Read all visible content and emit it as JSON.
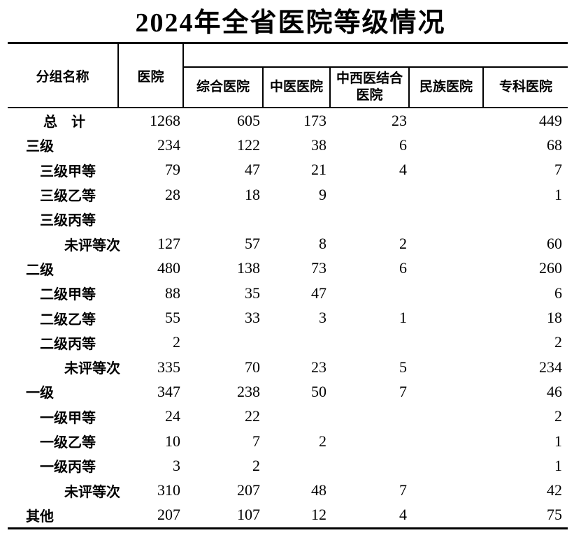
{
  "title": "2024年全省医院等级情况",
  "colors": {
    "background": "#ffffff",
    "text": "#000000",
    "rule": "#000000"
  },
  "table": {
    "header": {
      "group_column": "分组名称",
      "total_column": "医院",
      "sub_columns": [
        "综合医院",
        "中医医院",
        "中西医结合医院",
        "民族医院",
        "专科医院"
      ]
    },
    "rows": [
      {
        "label": "总　计",
        "indent": "total",
        "values": [
          "1268",
          "605",
          "173",
          "23",
          "",
          "449"
        ]
      },
      {
        "label": "三级",
        "indent": "group",
        "values": [
          "234",
          "122",
          "38",
          "6",
          "",
          "68"
        ]
      },
      {
        "label": "三级甲等",
        "indent": "sub",
        "values": [
          "79",
          "47",
          "21",
          "4",
          "",
          "7"
        ]
      },
      {
        "label": "三级乙等",
        "indent": "sub",
        "values": [
          "28",
          "18",
          "9",
          "",
          "",
          "1"
        ]
      },
      {
        "label": "三级丙等",
        "indent": "sub",
        "values": [
          "",
          "",
          "",
          "",
          "",
          ""
        ]
      },
      {
        "label": "未评等次",
        "indent": "sub2",
        "values": [
          "127",
          "57",
          "8",
          "2",
          "",
          "60"
        ]
      },
      {
        "label": "二级",
        "indent": "group",
        "values": [
          "480",
          "138",
          "73",
          "6",
          "",
          "260"
        ]
      },
      {
        "label": "二级甲等",
        "indent": "sub",
        "values": [
          "88",
          "35",
          "47",
          "",
          "",
          "6"
        ]
      },
      {
        "label": "二级乙等",
        "indent": "sub",
        "values": [
          "55",
          "33",
          "3",
          "1",
          "",
          "18"
        ]
      },
      {
        "label": "二级丙等",
        "indent": "sub",
        "values": [
          "2",
          "",
          "",
          "",
          "",
          "2"
        ]
      },
      {
        "label": "未评等次",
        "indent": "sub2",
        "values": [
          "335",
          "70",
          "23",
          "5",
          "",
          "234"
        ]
      },
      {
        "label": "一级",
        "indent": "group",
        "values": [
          "347",
          "238",
          "50",
          "7",
          "",
          "46"
        ]
      },
      {
        "label": "一级甲等",
        "indent": "sub",
        "values": [
          "24",
          "22",
          "",
          "",
          "",
          "2"
        ]
      },
      {
        "label": "一级乙等",
        "indent": "sub",
        "values": [
          "10",
          "7",
          "2",
          "",
          "",
          "1"
        ]
      },
      {
        "label": "一级丙等",
        "indent": "sub",
        "values": [
          "3",
          "2",
          "",
          "",
          "",
          "1"
        ]
      },
      {
        "label": "未评等次",
        "indent": "sub2",
        "values": [
          "310",
          "207",
          "48",
          "7",
          "",
          "42"
        ]
      },
      {
        "label": "其他",
        "indent": "group",
        "values": [
          "207",
          "107",
          "12",
          "4",
          "",
          "75"
        ]
      }
    ]
  }
}
